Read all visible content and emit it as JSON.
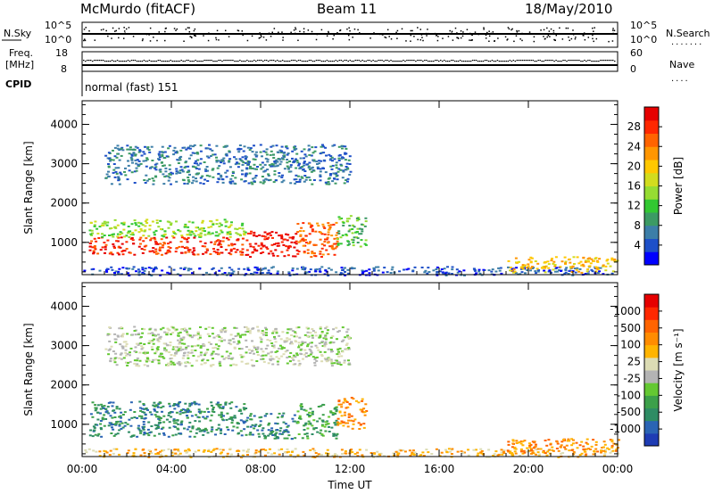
{
  "header": {
    "station": "McMurdo (fitACF)",
    "beam": "Beam 11",
    "date": "18/May/2010"
  },
  "top_panels": {
    "nsky_label": "N.Sky",
    "nsearch_label": "N.Search",
    "noise_ticks_left": [
      "10^5",
      "10^0"
    ],
    "noise_ticks_right": [
      "10^5",
      "10^0"
    ],
    "freq_label_1": "Freq.",
    "freq_label_2": "[MHz]",
    "freq_ticks": [
      "18",
      "8"
    ],
    "nave_label": "Nave",
    "nave_ticks": [
      "60",
      "0"
    ],
    "cpid_label": "CPID",
    "cpid_value": "normal (fast) 151"
  },
  "chart_data": [
    {
      "type": "heatmap",
      "panel": "power",
      "ylabel": "Slant Range [km]",
      "ylim": [
        180,
        4600
      ],
      "y_ticks": [
        1000,
        2000,
        3000,
        4000
      ],
      "x_ticks": [
        "00:00",
        "04:00",
        "08:00",
        "12:00",
        "16:00",
        "20:00",
        "00:00"
      ],
      "xlim_hours": [
        0,
        24
      ],
      "colorbar": {
        "label": "Power [dB]",
        "ticks": [
          "28",
          "24",
          "20",
          "16",
          "12",
          "8",
          "4"
        ],
        "colors": [
          "#0000ff",
          "#1e50c8",
          "#3c7ea8",
          "#3c9a64",
          "#32c832",
          "#96dc32",
          "#d2dc1e",
          "#ffc800",
          "#ff9600",
          "#ff6400",
          "#ff2800",
          "#e60000"
        ]
      },
      "regions": [
        {
          "t0": 0.3,
          "t1": 7.3,
          "r0": 700,
          "r1": 1150,
          "level": 10
        },
        {
          "t0": 0.3,
          "t1": 7.3,
          "r0": 1150,
          "r1": 1600,
          "level": 5
        },
        {
          "t0": 7.3,
          "t1": 9.6,
          "r0": 650,
          "r1": 1300,
          "level": 11
        },
        {
          "t0": 9.6,
          "t1": 11.4,
          "r0": 650,
          "r1": 1550,
          "level": 9
        },
        {
          "t0": 11.4,
          "t1": 12.7,
          "r0": 900,
          "r1": 1700,
          "level": 4
        },
        {
          "t0": 1.0,
          "t1": 12.0,
          "r0": 2500,
          "r1": 3500,
          "level": 2
        },
        {
          "t0": 0.0,
          "t1": 24.0,
          "r0": 180,
          "r1": 400,
          "level": 1
        },
        {
          "t0": 19.0,
          "t1": 24.0,
          "r0": 250,
          "r1": 650,
          "level": 7
        }
      ]
    },
    {
      "type": "heatmap",
      "panel": "velocity",
      "ylabel": "Slant Range [km]",
      "ylim": [
        180,
        4600
      ],
      "y_ticks": [
        1000,
        2000,
        3000,
        4000
      ],
      "x_ticks": [
        "00:00",
        "04:00",
        "08:00",
        "12:00",
        "16:00",
        "20:00",
        "00:00"
      ],
      "xlabel": "Time UT",
      "xlim_hours": [
        0,
        24
      ],
      "colorbar": {
        "label": "Velocity [m s⁻¹]",
        "ticks": [
          "1000",
          "500",
          "100",
          "25",
          "-25",
          "-100",
          "-500",
          "-1000"
        ],
        "colors": [
          "#1e3cb4",
          "#2a64b4",
          "#2e8c64",
          "#3ca04a",
          "#64c832",
          "#b4b4b4",
          "#dcdcb4",
          "#ffb400",
          "#ff8c00",
          "#ff6400",
          "#ff2800",
          "#e60000"
        ]
      },
      "regions": [
        {
          "t0": 0.3,
          "t1": 7.3,
          "r0": 700,
          "r1": 1600,
          "level": 2
        },
        {
          "t0": 7.3,
          "t1": 9.6,
          "r0": 650,
          "r1": 1300,
          "level": 2
        },
        {
          "t0": 9.6,
          "t1": 11.4,
          "r0": 650,
          "r1": 1550,
          "level": 3
        },
        {
          "t0": 11.4,
          "t1": 12.7,
          "r0": 900,
          "r1": 1700,
          "level": 8
        },
        {
          "t0": 1.0,
          "t1": 12.0,
          "r0": 2500,
          "r1": 3500,
          "level": 5
        },
        {
          "t0": 0.0,
          "t1": 24.0,
          "r0": 180,
          "r1": 400,
          "level": 7
        },
        {
          "t0": 19.0,
          "t1": 24.0,
          "r0": 250,
          "r1": 650,
          "level": 8
        }
      ]
    }
  ]
}
